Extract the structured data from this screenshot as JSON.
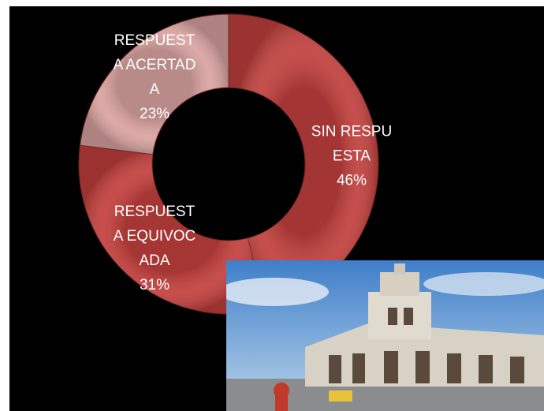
{
  "chart_data": {
    "type": "donut",
    "categories": [
      "SIN RESPUESTA",
      "RESPUESTA EQUIVOCADA",
      "RESPUESTA ACERTADA"
    ],
    "values": [
      46,
      31,
      23
    ],
    "value_labels": [
      "46%",
      "31%",
      "23%"
    ],
    "colors": [
      "#c0403d",
      "#c23f3c",
      "#d9a3a1"
    ]
  }
}
